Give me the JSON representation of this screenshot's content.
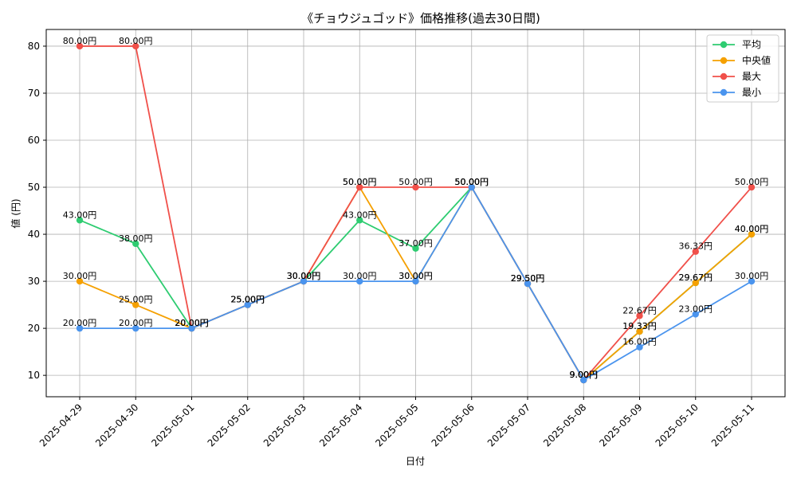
{
  "chart_data": {
    "type": "line",
    "title": "《チョウジュゴッド》価格推移(過去30日間)",
    "xlabel": "日付",
    "ylabel": "値 (円)",
    "categories": [
      "2025-04-29",
      "2025-04-30",
      "2025-05-01",
      "2025-05-02",
      "2025-05-03",
      "2025-05-04",
      "2025-05-05",
      "2025-05-06",
      "2025-05-07",
      "2025-05-08",
      "2025-05-09",
      "2025-05-10",
      "2025-05-11"
    ],
    "ylim": [
      5.45,
      83.55
    ],
    "yticks": [
      10,
      20,
      30,
      40,
      50,
      60,
      70,
      80
    ],
    "grid": true,
    "legend_position": "top-right",
    "series": [
      {
        "name": "平均",
        "color": "#2ecc71",
        "values": [
          43,
          38,
          20,
          25,
          30,
          43,
          37,
          50,
          29.5,
          9,
          19.33,
          29.67,
          40
        ]
      },
      {
        "name": "中央値",
        "color": "#f5a000",
        "values": [
          30,
          25,
          20,
          25,
          30,
          50,
          30,
          50,
          29.5,
          9,
          19.33,
          29.67,
          40
        ]
      },
      {
        "name": "最大",
        "color": "#f0504a",
        "values": [
          80,
          80,
          20,
          25,
          30,
          50,
          50,
          50,
          29.5,
          9,
          22.67,
          36.33,
          50
        ]
      },
      {
        "name": "最小",
        "color": "#4a94ee",
        "values": [
          20,
          20,
          20,
          25,
          30,
          30,
          30,
          50,
          29.5,
          9,
          16,
          23,
          30
        ]
      }
    ],
    "label_suffix": "円"
  }
}
